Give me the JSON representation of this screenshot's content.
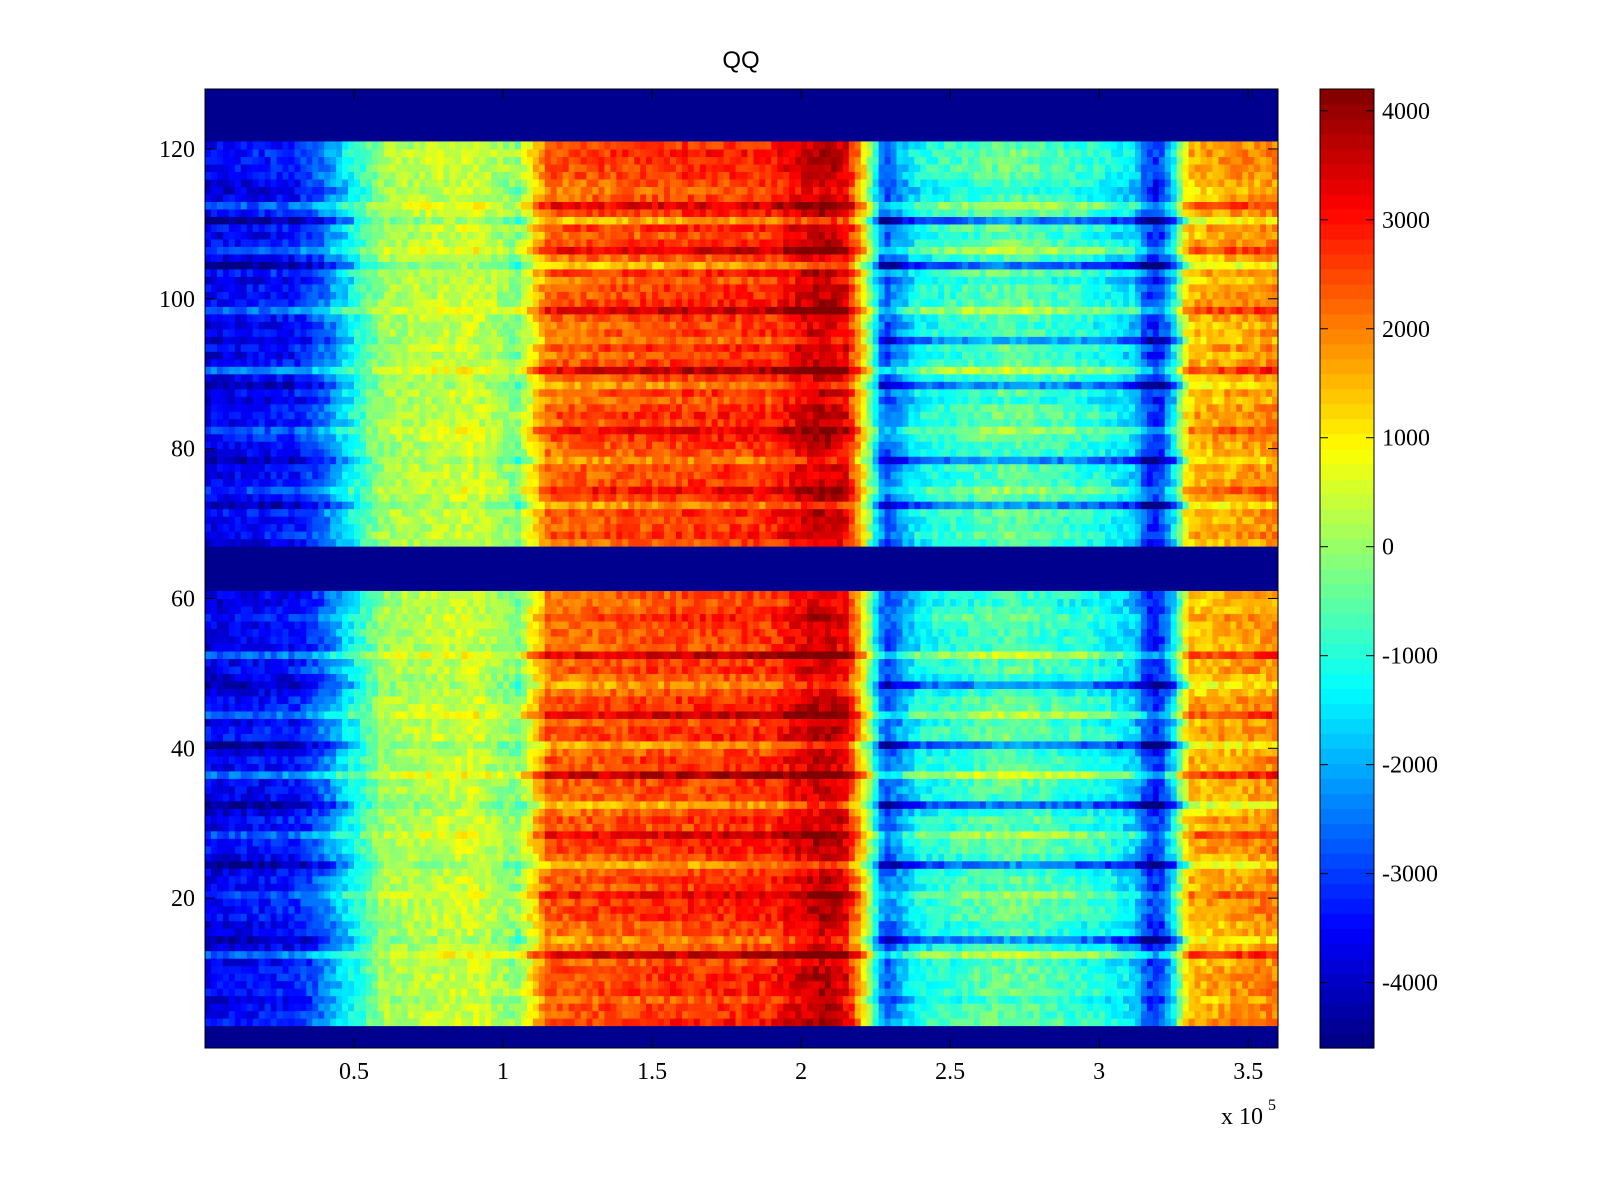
{
  "chart_data": {
    "type": "heatmap",
    "title": "QQ",
    "xlabel": "",
    "ylabel": "",
    "x_multiplier_label": "x 10",
    "x_multiplier_exponent": "5",
    "xlim": [
      0,
      3.6
    ],
    "ylim": [
      0,
      128
    ],
    "x_ticks": [
      0.5,
      1,
      1.5,
      2,
      2.5,
      3,
      3.5
    ],
    "x_tick_labels": [
      "0.5",
      "1",
      "1.5",
      "2",
      "2.5",
      "3",
      "3.5"
    ],
    "y_ticks": [
      20,
      40,
      60,
      80,
      100,
      120
    ],
    "y_tick_labels": [
      "20",
      "40",
      "60",
      "80",
      "100",
      "120"
    ],
    "colorbar": {
      "colormap": "jet",
      "range": [
        -4600,
        4200
      ],
      "ticks": [
        4000,
        3000,
        2000,
        1000,
        0,
        -1000,
        -2000,
        -3000,
        -4000
      ],
      "tick_labels": [
        "4000",
        "3000",
        "2000",
        "1000",
        "0",
        "-1000",
        "-2000",
        "-3000",
        "-4000"
      ]
    },
    "empty_row_bands": [
      [
        0,
        3
      ],
      [
        61,
        67
      ],
      [
        121,
        128
      ]
    ],
    "column_profile": {
      "x": [
        0,
        0.3,
        0.4,
        0.5,
        0.6,
        0.9,
        1.05,
        1.15,
        1.5,
        1.9,
        2.0,
        2.08,
        2.15,
        2.2,
        2.28,
        2.4,
        2.7,
        3.0,
        3.12,
        3.16,
        3.2,
        3.25,
        3.3,
        3.6
      ],
      "value": [
        -3700,
        -3400,
        -2600,
        -1200,
        100,
        500,
        -200,
        2200,
        2500,
        2700,
        3300,
        3600,
        3200,
        1500,
        -2900,
        -1200,
        -500,
        -1100,
        -1700,
        -3000,
        -3300,
        -1500,
        1400,
        1900
      ]
    },
    "bright_rows": [
      12,
      20,
      28,
      36,
      44,
      52,
      74,
      82,
      90,
      98,
      106,
      112
    ],
    "dark_rows": [
      14,
      24,
      32,
      40,
      48,
      72,
      78,
      88,
      94,
      104,
      110
    ]
  }
}
